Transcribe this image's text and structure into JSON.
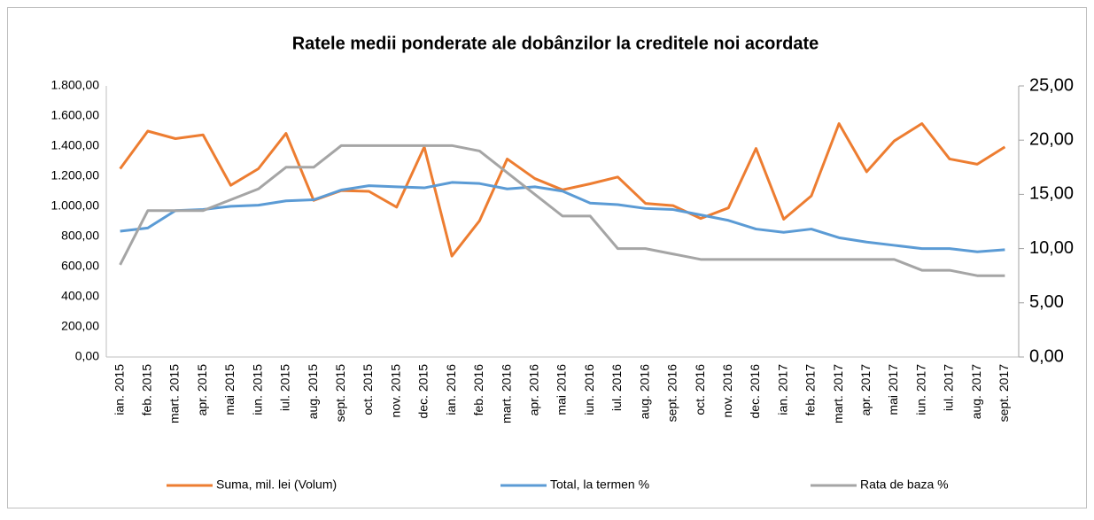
{
  "chart_data": {
    "type": "line",
    "title": "Ratele medii ponderate ale dobânzilor la creditele noi acordate",
    "categories": [
      "ian. 2015",
      "feb. 2015",
      "mart. 2015",
      "apr. 2015",
      "mai 2015",
      "iun. 2015",
      "iul. 2015",
      "aug. 2015",
      "sept. 2015",
      "oct. 2015",
      "nov. 2015",
      "dec. 2015",
      "ian. 2016",
      "feb. 2016",
      "mart. 2016",
      "apr. 2016",
      "mai 2016",
      "iun. 2016",
      "iul. 2016",
      "aug. 2016",
      "sept. 2016",
      "oct. 2016",
      "nov. 2016",
      "dec. 2016",
      "ian. 2017",
      "feb. 2017",
      "mart. 2017",
      "apr. 2017",
      "mai 2017",
      "iun. 2017",
      "iul. 2017",
      "aug. 2017",
      "sept. 2017"
    ],
    "series": [
      {
        "name": "Suma, mil. lei (Volum)",
        "color": "#ed7d31",
        "values": [
          1250,
          1500,
          1450,
          1475,
          1140,
          1250,
          1485,
          1040,
          1105,
          1100,
          995,
          1395,
          670,
          905,
          1315,
          1185,
          1110,
          1150,
          1195,
          1020,
          1005,
          920,
          990,
          1385,
          915,
          1070,
          1550,
          1230,
          1435,
          1550,
          1315,
          1280,
          1395
        ]
      },
      {
        "name": "Total, la termen %",
        "color": "#5b9bd5",
        "axis": "y2",
        "values": [
          11.6,
          11.9,
          13.5,
          13.6,
          13.9,
          14.0,
          14.4,
          14.5,
          15.4,
          15.8,
          15.7,
          15.6,
          16.1,
          16.0,
          15.5,
          15.7,
          15.3,
          14.2,
          14.05,
          13.7,
          13.6,
          13.1,
          12.6,
          11.8,
          11.5,
          11.8,
          11.0,
          10.6,
          10.3,
          10.0,
          10.0,
          9.7,
          9.9
        ]
      },
      {
        "name": "Rata de baza %",
        "color": "#a5a5a5",
        "axis": "y2",
        "values": [
          8.5,
          13.5,
          13.5,
          13.5,
          14.5,
          15.5,
          17.5,
          17.5,
          19.5,
          19.5,
          19.5,
          19.5,
          19.5,
          19.0,
          17,
          15,
          13,
          13,
          10,
          10,
          9.5,
          9,
          9,
          9,
          9,
          9,
          9,
          9,
          9,
          8,
          8,
          7.5,
          7.5
        ]
      }
    ],
    "ylim": [
      0,
      1800
    ],
    "yticks": [
      {
        "value": 0,
        "label": "0,00"
      },
      {
        "value": 200,
        "label": "200,00"
      },
      {
        "value": 400,
        "label": "400,00"
      },
      {
        "value": 600,
        "label": "600,00"
      },
      {
        "value": 800,
        "label": "800,00"
      },
      {
        "value": 1000,
        "label": "1.000,00"
      },
      {
        "value": 1200,
        "label": "1.200,00"
      },
      {
        "value": 1400,
        "label": "1.400,00"
      },
      {
        "value": 1600,
        "label": "1.600,00"
      },
      {
        "value": 1800,
        "label": "1.800,00"
      }
    ],
    "y2lim": [
      0,
      25
    ],
    "y2ticks": [
      {
        "value": 0,
        "label": "0,00"
      },
      {
        "value": 5,
        "label": "5,00"
      },
      {
        "value": 10,
        "label": "10,00"
      },
      {
        "value": 15,
        "label": "15,00"
      },
      {
        "value": 20,
        "label": "20,00"
      },
      {
        "value": 25,
        "label": "25,00"
      }
    ],
    "grid": false,
    "legend": "bottom"
  }
}
